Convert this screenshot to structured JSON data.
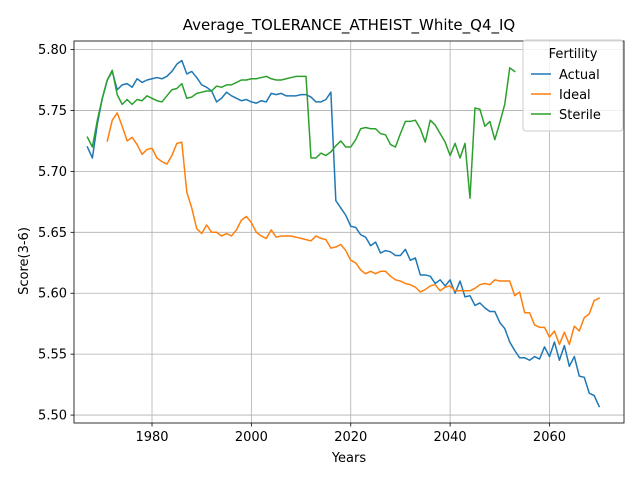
{
  "chart_data": {
    "type": "line",
    "title": "Average_TOLERANCE_ATHEIST_White_Q4_IQ",
    "xlabel": "Years",
    "ylabel": "Score(3-6)",
    "xlim": [
      1964.3,
      2075.0
    ],
    "ylim": [
      5.4935,
      5.807
    ],
    "xticks": [
      1980,
      2000,
      2020,
      2040,
      2060
    ],
    "yticks": [
      5.5,
      5.55,
      5.6,
      5.65,
      5.7,
      5.75,
      5.8
    ],
    "ytick_labels": [
      "5.50",
      "5.55",
      "5.60",
      "5.65",
      "5.70",
      "5.75",
      "5.80"
    ],
    "grid": true,
    "legend": {
      "title": "Fertility",
      "position": "upper right"
    },
    "series": [
      {
        "name": "Actual",
        "color": "#1f77b4",
        "x": [
          1967,
          1968,
          1969,
          1970,
          1971,
          1972,
          1973,
          1974,
          1975,
          1976,
          1977,
          1978,
          1979,
          1980,
          1981,
          1982,
          1983,
          1984,
          1985,
          1986,
          1987,
          1988,
          1989,
          1990,
          1991,
          1992,
          1993,
          1994,
          1995,
          1996,
          1997,
          1998,
          1999,
          2000,
          2001,
          2002,
          2003,
          2004,
          2005,
          2006,
          2007,
          2008,
          2009,
          2010,
          2011,
          2012,
          2013,
          2014,
          2015,
          2016,
          2017,
          2018,
          2019,
          2020,
          2021,
          2022,
          2023,
          2024,
          2025,
          2026,
          2027,
          2028,
          2029,
          2030,
          2031,
          2032,
          2033,
          2034,
          2035,
          2036,
          2037,
          2038,
          2039,
          2040,
          2041,
          2042,
          2043,
          2044,
          2045,
          2046,
          2047,
          2048,
          2049,
          2050,
          2051,
          2052,
          2053,
          2054,
          2055,
          2056,
          2057,
          2058,
          2059,
          2060,
          2061,
          2062,
          2063,
          2064,
          2065,
          2066,
          2067,
          2068,
          2069,
          2070
        ],
        "y": [
          5.72,
          5.711,
          5.739,
          5.76,
          5.775,
          5.782,
          5.767,
          5.771,
          5.772,
          5.769,
          5.776,
          5.773,
          5.775,
          5.776,
          5.777,
          5.776,
          5.778,
          5.782,
          5.788,
          5.791,
          5.78,
          5.782,
          5.777,
          5.771,
          5.769,
          5.766,
          5.757,
          5.76,
          5.765,
          5.762,
          5.76,
          5.758,
          5.759,
          5.757,
          5.756,
          5.758,
          5.757,
          5.764,
          5.763,
          5.764,
          5.762,
          5.762,
          5.762,
          5.763,
          5.763,
          5.761,
          5.757,
          5.757,
          5.759,
          5.765,
          5.676,
          5.67,
          5.664,
          5.655,
          5.654,
          5.648,
          5.646,
          5.639,
          5.642,
          5.633,
          5.635,
          5.634,
          5.631,
          5.631,
          5.636,
          5.627,
          5.629,
          5.615,
          5.615,
          5.614,
          5.608,
          5.611,
          5.606,
          5.611,
          5.6,
          5.61,
          5.597,
          5.598,
          5.59,
          5.592,
          5.588,
          5.585,
          5.585,
          5.576,
          5.571,
          5.56,
          5.553,
          5.547,
          5.547,
          5.545,
          5.548,
          5.546,
          5.556,
          5.548,
          5.56,
          5.545,
          5.557,
          5.54,
          5.548,
          5.532,
          5.531,
          5.518,
          5.516,
          5.507
        ]
      },
      {
        "name": "Ideal",
        "color": "#ff7f0e",
        "x": [
          1971,
          1972,
          1973,
          1974,
          1975,
          1976,
          1977,
          1978,
          1979,
          1980,
          1981,
          1982,
          1983,
          1984,
          1985,
          1986,
          1987,
          1988,
          1989,
          1990,
          1991,
          1992,
          1993,
          1994,
          1995,
          1996,
          1997,
          1998,
          1999,
          2000,
          2001,
          2002,
          2003,
          2004,
          2005,
          2006,
          2007,
          2008,
          2009,
          2010,
          2011,
          2012,
          2013,
          2014,
          2015,
          2016,
          2017,
          2018,
          2019,
          2020,
          2021,
          2022,
          2023,
          2024,
          2025,
          2026,
          2027,
          2028,
          2029,
          2030,
          2031,
          2032,
          2033,
          2034,
          2035,
          2036,
          2037,
          2038,
          2039,
          2040,
          2041,
          2042,
          2043,
          2044,
          2045,
          2046,
          2047,
          2048,
          2049,
          2050,
          2051,
          2052,
          2053,
          2054,
          2055,
          2056,
          2057,
          2058,
          2059,
          2060,
          2061,
          2062,
          2063,
          2064,
          2065,
          2066,
          2067,
          2068,
          2069,
          2070
        ],
        "y": [
          5.725,
          5.742,
          5.748,
          5.737,
          5.725,
          5.728,
          5.722,
          5.714,
          5.718,
          5.719,
          5.711,
          5.708,
          5.706,
          5.713,
          5.723,
          5.724,
          5.683,
          5.67,
          5.653,
          5.649,
          5.656,
          5.65,
          5.65,
          5.647,
          5.649,
          5.647,
          5.652,
          5.66,
          5.663,
          5.658,
          5.65,
          5.647,
          5.645,
          5.652,
          5.646,
          5.647,
          5.647,
          5.647,
          5.646,
          5.645,
          5.644,
          5.643,
          5.647,
          5.645,
          5.644,
          5.637,
          5.638,
          5.64,
          5.635,
          5.627,
          5.625,
          5.619,
          5.616,
          5.618,
          5.616,
          5.618,
          5.618,
          5.614,
          5.611,
          5.61,
          5.608,
          5.607,
          5.605,
          5.601,
          5.603,
          5.606,
          5.607,
          5.602,
          5.605,
          5.606,
          5.602,
          5.602,
          5.602,
          5.602,
          5.604,
          5.607,
          5.608,
          5.607,
          5.611,
          5.61,
          5.61,
          5.61,
          5.598,
          5.601,
          5.584,
          5.584,
          5.574,
          5.572,
          5.572,
          5.564,
          5.569,
          5.558,
          5.568,
          5.558,
          5.573,
          5.569,
          5.58,
          5.583,
          5.594,
          5.596
        ]
      },
      {
        "name": "Sterile",
        "color": "#2ca02c",
        "x": [
          1967,
          1968,
          1969,
          1970,
          1971,
          1972,
          1973,
          1974,
          1975,
          1976,
          1977,
          1978,
          1979,
          1980,
          1981,
          1982,
          1983,
          1984,
          1985,
          1986,
          1987,
          1988,
          1989,
          1990,
          1991,
          1992,
          1993,
          1994,
          1995,
          1996,
          1997,
          1998,
          1999,
          2000,
          2001,
          2002,
          2003,
          2004,
          2005,
          2006,
          2007,
          2008,
          2009,
          2010,
          2011,
          2012,
          2013,
          2014,
          2015,
          2016,
          2017,
          2018,
          2019,
          2020,
          2021,
          2022,
          2023,
          2024,
          2025,
          2026,
          2027,
          2028,
          2029,
          2030,
          2031,
          2032,
          2033,
          2034,
          2035,
          2036,
          2037,
          2038,
          2039,
          2040,
          2041,
          2042,
          2043,
          2044,
          2045,
          2046,
          2047,
          2048,
          2049,
          2050,
          2051,
          2052,
          2053
        ],
        "y": [
          5.728,
          5.72,
          5.742,
          5.76,
          5.775,
          5.783,
          5.763,
          5.755,
          5.759,
          5.755,
          5.759,
          5.758,
          5.762,
          5.76,
          5.758,
          5.757,
          5.762,
          5.767,
          5.768,
          5.772,
          5.76,
          5.761,
          5.764,
          5.765,
          5.766,
          5.766,
          5.77,
          5.769,
          5.771,
          5.771,
          5.773,
          5.775,
          5.775,
          5.776,
          5.776,
          5.777,
          5.778,
          5.776,
          5.775,
          5.775,
          5.776,
          5.777,
          5.778,
          5.778,
          5.778,
          5.711,
          5.711,
          5.715,
          5.713,
          5.716,
          5.721,
          5.725,
          5.72,
          5.72,
          5.726,
          5.735,
          5.736,
          5.735,
          5.735,
          5.731,
          5.73,
          5.722,
          5.72,
          5.731,
          5.741,
          5.741,
          5.742,
          5.735,
          5.724,
          5.742,
          5.738,
          5.731,
          5.724,
          5.713,
          5.723,
          5.711,
          5.723,
          5.678,
          5.752,
          5.751,
          5.737,
          5.741,
          5.726,
          5.74,
          5.755,
          5.785,
          5.782
        ]
      }
    ]
  }
}
